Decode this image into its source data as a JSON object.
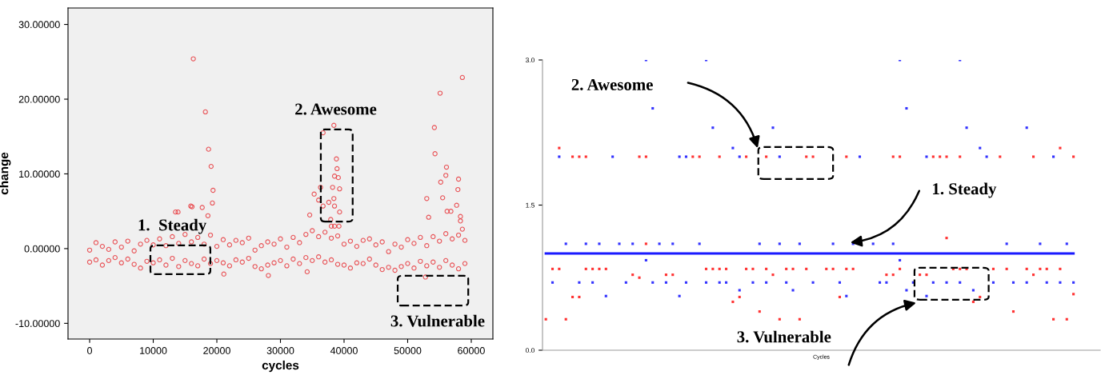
{
  "chart_data": [
    {
      "type": "scatter",
      "xlabel": "cycles",
      "ylabel": "change",
      "color": "#e8383d",
      "marker": "circle",
      "grid": false,
      "xlim": [
        -3400,
        63400
      ],
      "ylim": [
        -12.1,
        32.2
      ],
      "xticks": [
        0,
        10000,
        20000,
        30000,
        40000,
        50000,
        60000
      ],
      "yticks": [
        {
          "value": -10,
          "label": "-10.00000"
        },
        {
          "value": 0,
          "label": "0.00000"
        },
        {
          "value": 10,
          "label": "10.00000"
        },
        {
          "value": 20,
          "label": "20.00000"
        },
        {
          "value": 30,
          "label": "30.00000"
        }
      ],
      "annotations": [
        "1.  Steady",
        "2. Awesome",
        "3. Vulnerable"
      ],
      "x": [
        0,
        0,
        1000,
        1000,
        2000,
        2000,
        3000,
        3000,
        4000,
        4000,
        5000,
        5000,
        6000,
        6000,
        7000,
        7000,
        8000,
        8000,
        9000,
        9000,
        10000,
        10000,
        11000,
        11000,
        12000,
        12000,
        13000,
        13000,
        14000,
        14000,
        15000,
        15000,
        16000,
        16000,
        17000,
        17000,
        18000,
        18000,
        19000,
        19000,
        20000,
        20000,
        21000,
        21000,
        22000,
        22000,
        23000,
        23000,
        24000,
        24000,
        25000,
        25000,
        26000,
        26000,
        27000,
        27000,
        28000,
        28000,
        29000,
        29000,
        30000,
        30000,
        31000,
        31000,
        32000,
        32000,
        33000,
        33000,
        34000,
        34000,
        35000,
        35000,
        36000,
        36000,
        37000,
        37000,
        38000,
        38000,
        39000,
        39000,
        40000,
        40000,
        41000,
        41000,
        42000,
        42000,
        43000,
        43000,
        44000,
        44000,
        45000,
        45000,
        46000,
        46000,
        47000,
        47000,
        48000,
        48000,
        49000,
        49000,
        50000,
        50000,
        51000,
        51000,
        52000,
        52000,
        53000,
        53000,
        54000,
        54000,
        55000,
        55000,
        56000,
        56000,
        57000,
        57000,
        58000,
        58000,
        59000,
        59000,
        16300,
        18200,
        18700,
        19100,
        19400,
        19300,
        15900,
        16100,
        17700,
        18600,
        13500,
        13900,
        58600,
        55100,
        54200,
        54300,
        56100,
        55200,
        55500,
        56000,
        58000,
        57900,
        53000,
        53300,
        56200,
        56800,
        57700,
        58300,
        58300,
        58600,
        38400,
        36700,
        38800,
        38900,
        38500,
        39100,
        36300,
        38200,
        39300,
        35300,
        36000,
        37600,
        38400,
        36700,
        38500,
        39300,
        34600,
        37900,
        38000,
        38500,
        39200,
        21100,
        28100,
        52800,
        34200
      ],
      "values": [
        -0.2,
        -1.8,
        0.8,
        -1.5,
        0.3,
        -2.2,
        -0.1,
        -1.6,
        0.9,
        -1.2,
        0.2,
        -1.9,
        1.0,
        -1.4,
        -0.3,
        -2.1,
        0.6,
        -2.6,
        1.1,
        -1.7,
        0.5,
        -1.9,
        1.3,
        -1.5,
        0.4,
        -2.2,
        1.6,
        -1.3,
        0.7,
        -2.4,
        1.9,
        -1.6,
        0.9,
        -2.0,
        1.5,
        -2.3,
        0.6,
        -1.4,
        1.8,
        -2.0,
        0.3,
        -1.6,
        1.2,
        -1.9,
        0.5,
        -2.3,
        1.1,
        -1.5,
        0.8,
        -1.8,
        1.4,
        -1.3,
        -0.2,
        -2.4,
        0.4,
        -2.7,
        0.9,
        -2.2,
        0.6,
        -1.9,
        1.3,
        -1.6,
        0.2,
        -2.3,
        1.5,
        -1.4,
        0.8,
        -2.0,
        1.9,
        -1.2,
        2.4,
        -1.6,
        1.6,
        -1.1,
        2.2,
        -1.8,
        1.4,
        -1.5,
        1.7,
        -2.1,
        0.6,
        -2.2,
        1.0,
        -2.6,
        0.3,
        -1.9,
        1.1,
        -2.0,
        1.3,
        -1.4,
        0.5,
        -2.2,
        0.9,
        -2.8,
        -0.4,
        -2.5,
        0.6,
        -2.9,
        0.2,
        -2.4,
        1.2,
        -2.0,
        0.7,
        -2.6,
        1.5,
        -1.7,
        0.4,
        -2.3,
        1.6,
        -1.8,
        1.0,
        -2.5,
        2.0,
        -1.6,
        1.3,
        -2.2,
        1.8,
        -2.7,
        1.1,
        -2.0,
        25.4,
        18.3,
        13.3,
        11.0,
        7.8,
        6.1,
        5.7,
        5.6,
        5.5,
        4.4,
        4.9,
        4.9,
        22.9,
        20.8,
        16.2,
        12.7,
        10.9,
        8.9,
        6.8,
        9.8,
        9.3,
        7.9,
        6.7,
        4.2,
        5.0,
        5.0,
        5.8,
        4.3,
        3.7,
        2.6,
        16.5,
        15.5,
        12.0,
        10.7,
        9.7,
        9.5,
        8.2,
        8.2,
        8.0,
        7.3,
        6.5,
        6.2,
        6.7,
        5.7,
        5.7,
        4.9,
        4.5,
        3.9,
        3.0,
        3.0,
        3.0,
        -3.4,
        -3.6,
        -3.8,
        -3.1
      ]
    },
    {
      "type": "scatter",
      "xlabel": "Cycles",
      "marker": "square",
      "grid": false,
      "tick_labels": "y",
      "ylim": [
        0,
        3
      ],
      "yticks": [
        {
          "value": 0,
          "label": "0.0"
        },
        {
          "value": 1.5,
          "label": "1.5"
        },
        {
          "value": 3,
          "label": "3.0"
        }
      ],
      "annotations": [
        "2. Awesome",
        "1. Steady",
        "3. Vulnerable"
      ],
      "categories": [
        null,
        null,
        null,
        null,
        null,
        null,
        null,
        null,
        null,
        null,
        null,
        null,
        null,
        null,
        null,
        null,
        null,
        null,
        null,
        null,
        null,
        null,
        null,
        null,
        null,
        null,
        null,
        null,
        null,
        null,
        null,
        null,
        null,
        null,
        null,
        null,
        null,
        null,
        null,
        null,
        null,
        null,
        null,
        null,
        null,
        null,
        null,
        null,
        null,
        null,
        null,
        null,
        null,
        null,
        null,
        null,
        null,
        null,
        null,
        null,
        null,
        null,
        null,
        null,
        null,
        null,
        null,
        null,
        null,
        null,
        null,
        null,
        null,
        null,
        null,
        null,
        null,
        null,
        null,
        null
      ],
      "series": [
        {
          "type": "line",
          "marker": "none",
          "color": "#1a1aff",
          "values": [
            1.0,
            1.0,
            1.0,
            1.0,
            1.0,
            1.0,
            1.0,
            1.0,
            1.0,
            1.0,
            1.0,
            1.0,
            1.0,
            1.0,
            1.0,
            1.0,
            1.0,
            1.0,
            1.0,
            1.0,
            1.0,
            1.0,
            1.0,
            1.0,
            1.0,
            1.0,
            1.0,
            1.0,
            1.0,
            1.0,
            1.0,
            1.0,
            1.0,
            1.0,
            1.0,
            1.0,
            1.0,
            1.0,
            1.0,
            1.0,
            1.0,
            1.0,
            1.0,
            1.0,
            1.0,
            1.0,
            1.0,
            1.0,
            1.0,
            1.0,
            1.0,
            1.0,
            1.0,
            1.0,
            1.0,
            1.0,
            1.0,
            1.0,
            1.0,
            1.0,
            1.0,
            1.0,
            1.0,
            1.0,
            1.0,
            1.0,
            1.0,
            1.0,
            1.0,
            1.0,
            1.0,
            1.0,
            1.0,
            1.0,
            1.0,
            1.0,
            1.0,
            1.0,
            1.0,
            1.0
          ]
        },
        {
          "color": "#3333ff",
          "values": [
            null,
            null,
            2.0,
            null,
            null,
            null,
            null,
            null,
            null,
            null,
            2.0,
            null,
            null,
            null,
            null,
            3.0,
            2.5,
            null,
            null,
            null,
            2.0,
            2.0,
            null,
            null,
            3.0,
            2.3,
            null,
            null,
            2.09,
            2.0,
            null,
            null,
            null,
            null,
            2.3,
            2.0,
            null,
            null,
            null,
            null,
            null,
            null,
            null,
            null,
            null,
            null,
            null,
            2.0,
            null,
            null,
            null,
            null,
            null,
            3.0,
            2.5,
            null,
            null,
            2.0,
            null,
            null,
            null,
            null,
            3.0,
            2.3,
            null,
            2.09,
            2.0,
            null,
            null,
            null,
            null,
            null,
            2.3,
            null,
            null,
            null,
            2.0,
            null,
            null,
            null
          ]
        },
        {
          "color": "#3333ff",
          "values": [
            null,
            0.7,
            null,
            1.1,
            null,
            0.7,
            1.1,
            0.7,
            1.1,
            0.56,
            null,
            1.1,
            0.7,
            1.1,
            null,
            0.93,
            0.7,
            1.1,
            0.7,
            1.1,
            0.56,
            0.7,
            null,
            1.1,
            0.7,
            null,
            0.7,
            0.7,
            null,
            0.62,
            null,
            0.7,
            1.1,
            0.7,
            null,
            1.1,
            0.7,
            0.62,
            1.1,
            null,
            0.7,
            null,
            null,
            1.1,
            0.7,
            0.56,
            1.1,
            null,
            null,
            1.1,
            0.7,
            0.7,
            1.1,
            0.93,
            0.62,
            0.7,
            null,
            0.56,
            0.7,
            null,
            0.7,
            null,
            0.7,
            null,
            0.62,
            null,
            null,
            0.7,
            null,
            1.1,
            0.7,
            null,
            0.7,
            null,
            1.1,
            0.7,
            null,
            0.7,
            1.1,
            0.7
          ]
        },
        {
          "color": "#ff3333",
          "values": [
            null,
            null,
            2.09,
            null,
            2.0,
            2.0,
            2.0,
            null,
            null,
            null,
            null,
            null,
            null,
            null,
            2.0,
            2.0,
            null,
            null,
            null,
            null,
            null,
            null,
            2.0,
            2.0,
            null,
            null,
            2.0,
            null,
            null,
            null,
            2.0,
            null,
            null,
            2.0,
            null,
            null,
            null,
            null,
            null,
            2.0,
            2.0,
            null,
            null,
            null,
            null,
            2.0,
            null,
            null,
            null,
            null,
            null,
            null,
            2.0,
            2.0,
            null,
            null,
            null,
            null,
            2.0,
            2.0,
            2.0,
            null,
            2.0,
            null,
            null,
            null,
            null,
            null,
            2.0,
            null,
            null,
            null,
            null,
            2.0,
            null,
            null,
            null,
            2.09,
            null,
            2.0
          ]
        },
        {
          "color": "#ff3333",
          "values": [
            0.32,
            0.84,
            0.84,
            0.32,
            0.55,
            0.55,
            0.84,
            0.84,
            0.84,
            0.84,
            null,
            null,
            null,
            0.78,
            0.75,
            1.1,
            null,
            null,
            0.78,
            0.78,
            null,
            null,
            null,
            null,
            0.84,
            0.84,
            0.84,
            0.84,
            0.5,
            0.55,
            0.84,
            0.84,
            0.4,
            0.84,
            0.78,
            0.32,
            0.84,
            0.84,
            0.32,
            0.84,
            null,
            null,
            0.84,
            0.84,
            0.55,
            0.84,
            0.84,
            null,
            null,
            null,
            null,
            0.78,
            0.78,
            0.84,
            null,
            null,
            0.78,
            0.78,
            null,
            null,
            1.16,
            0.84,
            0.84,
            0.84,
            0.5,
            0.55,
            null,
            0.84,
            null,
            0.84,
            0.4,
            null,
            0.84,
            0.78,
            0.84,
            0.84,
            0.32,
            0.84,
            0.32,
            0.58
          ]
        }
      ]
    }
  ]
}
